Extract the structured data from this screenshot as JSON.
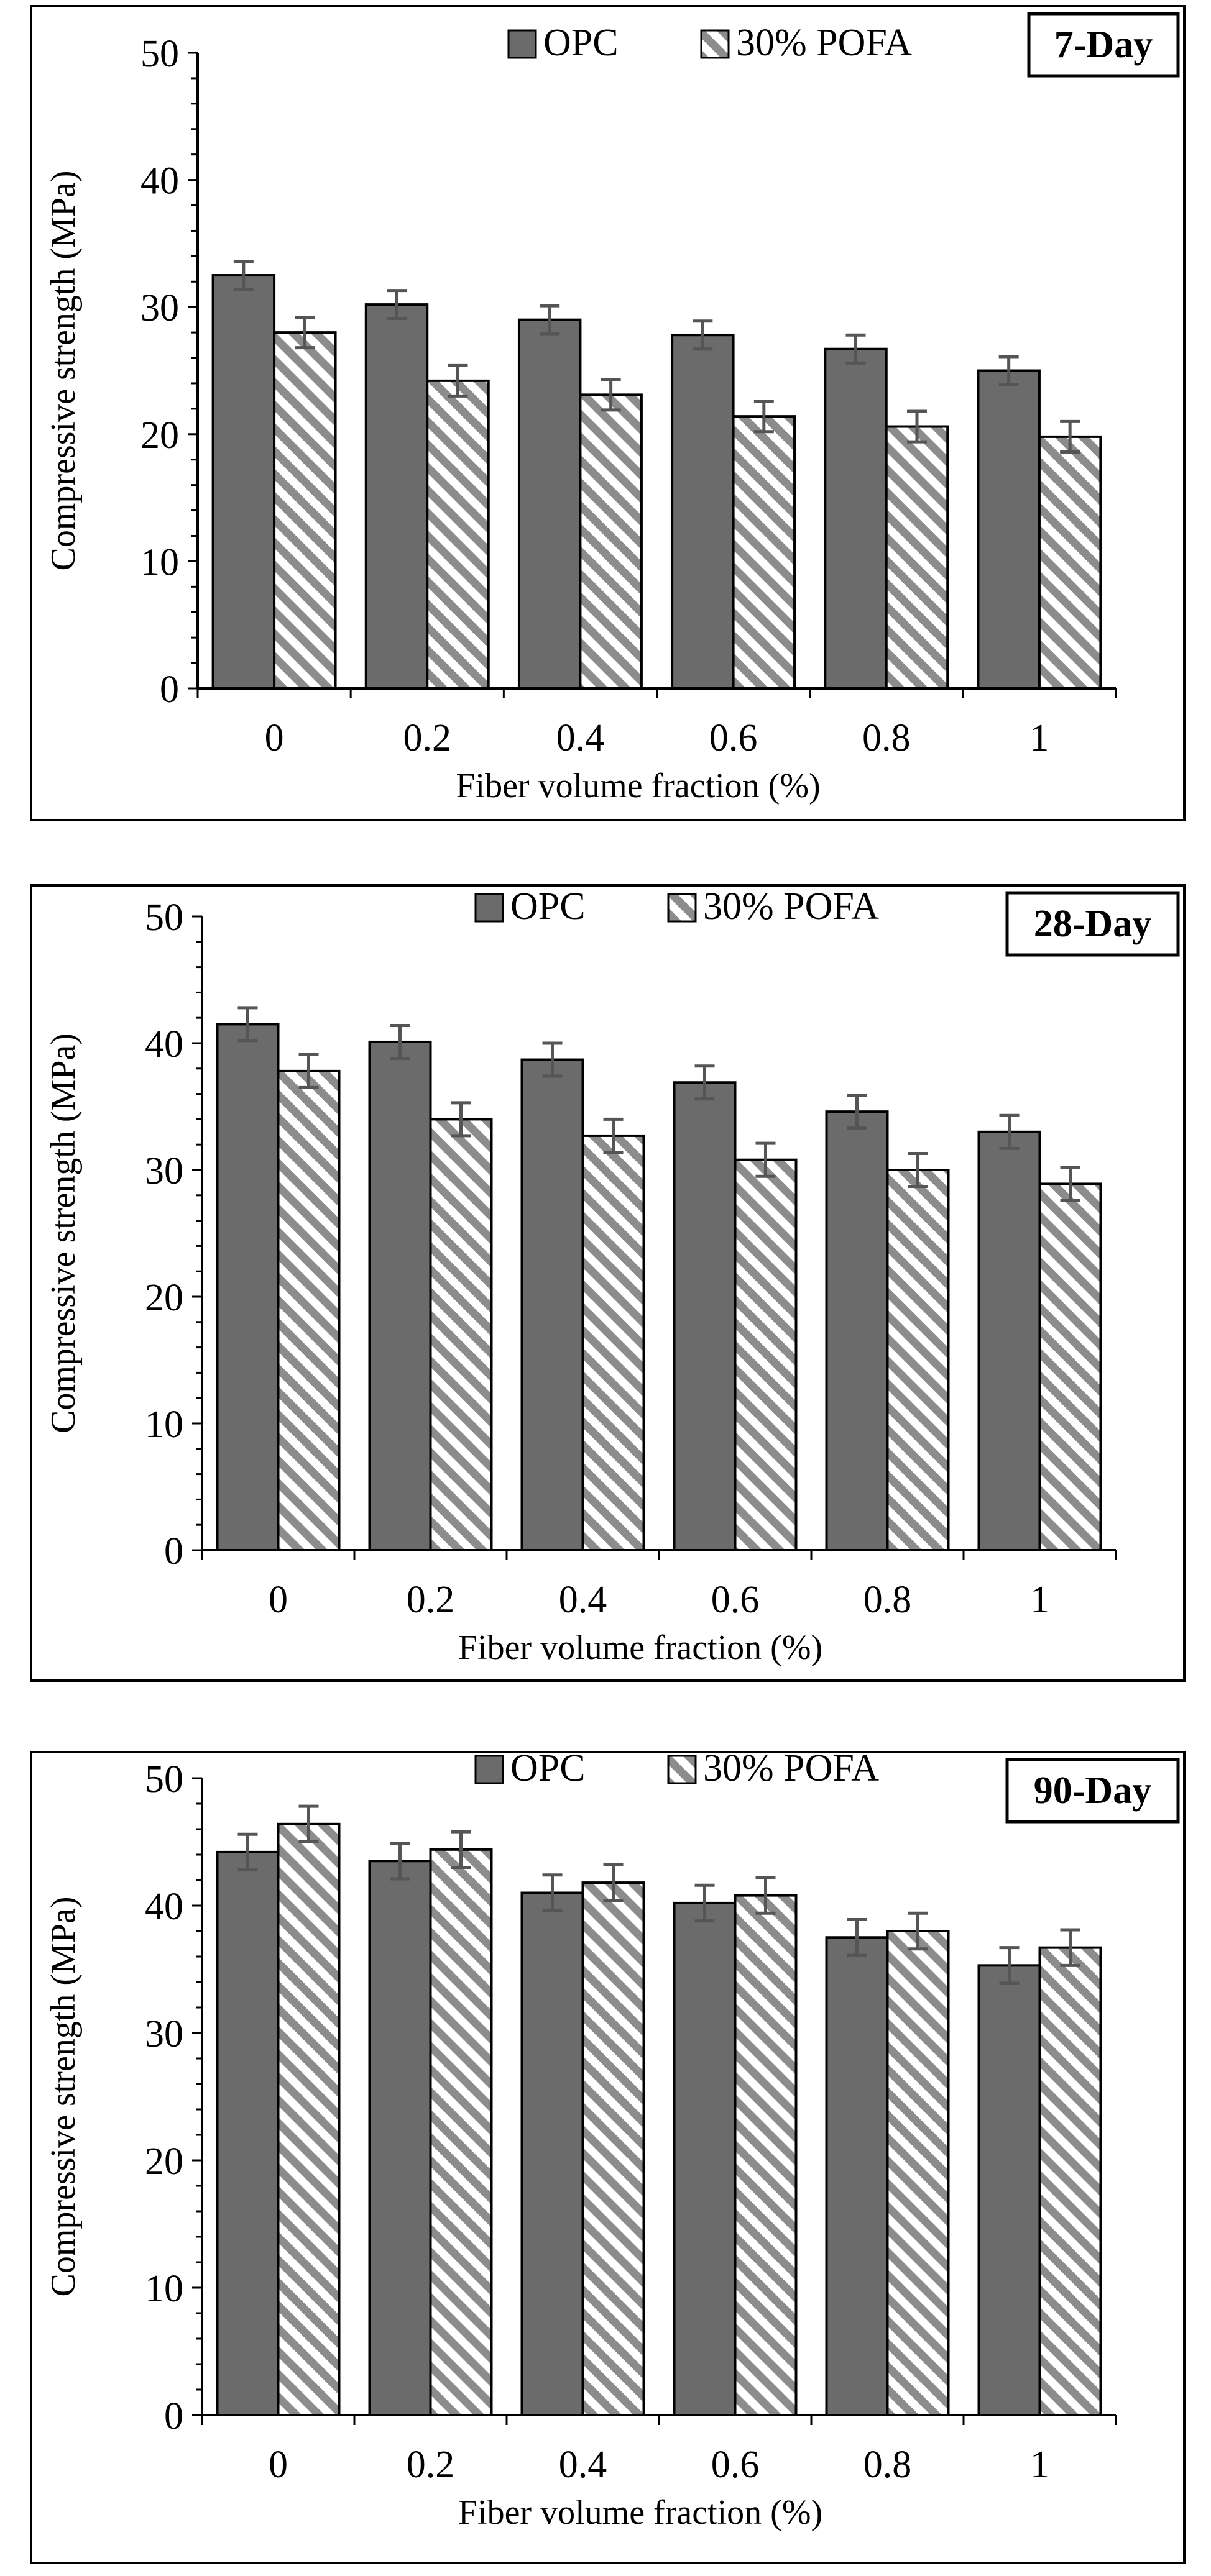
{
  "chart_data": [
    {
      "type": "bar",
      "tag": "7-Day",
      "xlabel": "Fiber volume fraction (%)",
      "ylabel": "Compressive strength (MPa)",
      "categories": [
        "0",
        "0.2",
        "0.4",
        "0.6",
        "0.8",
        "1"
      ],
      "ylim": [
        0,
        50
      ],
      "yticks": [
        "0",
        "10",
        "20",
        "30",
        "40",
        "50"
      ],
      "series": [
        {
          "name": "OPC",
          "values": [
            32.5,
            30.2,
            29.0,
            27.8,
            26.7,
            25.0
          ],
          "errors": [
            1.1,
            1.1,
            1.1,
            1.1,
            1.1,
            1.1
          ]
        },
        {
          "name": "30% POFA",
          "values": [
            28.0,
            24.2,
            23.1,
            21.4,
            20.6,
            19.8
          ],
          "errors": [
            1.2,
            1.2,
            1.2,
            1.2,
            1.2,
            1.2
          ]
        }
      ],
      "legend": "top",
      "grid": false
    },
    {
      "type": "bar",
      "tag": "28-Day",
      "xlabel": "Fiber volume fraction (%)",
      "ylabel": "Compressive strength (MPa)",
      "categories": [
        "0",
        "0.2",
        "0.4",
        "0.6",
        "0.8",
        "1"
      ],
      "ylim": [
        0,
        50
      ],
      "yticks": [
        "0",
        "10",
        "20",
        "30",
        "40",
        "50"
      ],
      "series": [
        {
          "name": "OPC",
          "values": [
            41.5,
            40.1,
            38.7,
            36.9,
            34.6,
            33.0
          ],
          "errors": [
            1.3,
            1.3,
            1.3,
            1.3,
            1.3,
            1.3
          ]
        },
        {
          "name": "30% POFA",
          "values": [
            37.8,
            34.0,
            32.7,
            30.8,
            30.0,
            28.9
          ],
          "errors": [
            1.3,
            1.3,
            1.3,
            1.3,
            1.3,
            1.3
          ]
        }
      ],
      "legend": "top",
      "grid": false
    },
    {
      "type": "bar",
      "tag": "90-Day",
      "xlabel": "Fiber volume fraction (%)",
      "ylabel": "Compressive strength (MPa)",
      "categories": [
        "0",
        "0.2",
        "0.4",
        "0.6",
        "0.8",
        "1"
      ],
      "ylim": [
        0,
        50
      ],
      "yticks": [
        "0",
        "10",
        "20",
        "30",
        "40",
        "50"
      ],
      "series": [
        {
          "name": "OPC",
          "values": [
            44.2,
            43.5,
            41.0,
            40.2,
            37.5,
            35.3
          ],
          "errors": [
            1.4,
            1.4,
            1.4,
            1.4,
            1.4,
            1.4
          ]
        },
        {
          "name": "30% POFA",
          "values": [
            46.4,
            44.4,
            41.8,
            40.8,
            38.0,
            36.7
          ],
          "errors": [
            1.4,
            1.4,
            1.4,
            1.4,
            1.4,
            1.4
          ]
        }
      ],
      "legend": "top",
      "grid": false
    }
  ],
  "colors": {
    "opc_fill": "#6b6b6b",
    "pofa_stripe": "#8c8c8c",
    "error_bar": "#555555",
    "outline": "#000000"
  }
}
